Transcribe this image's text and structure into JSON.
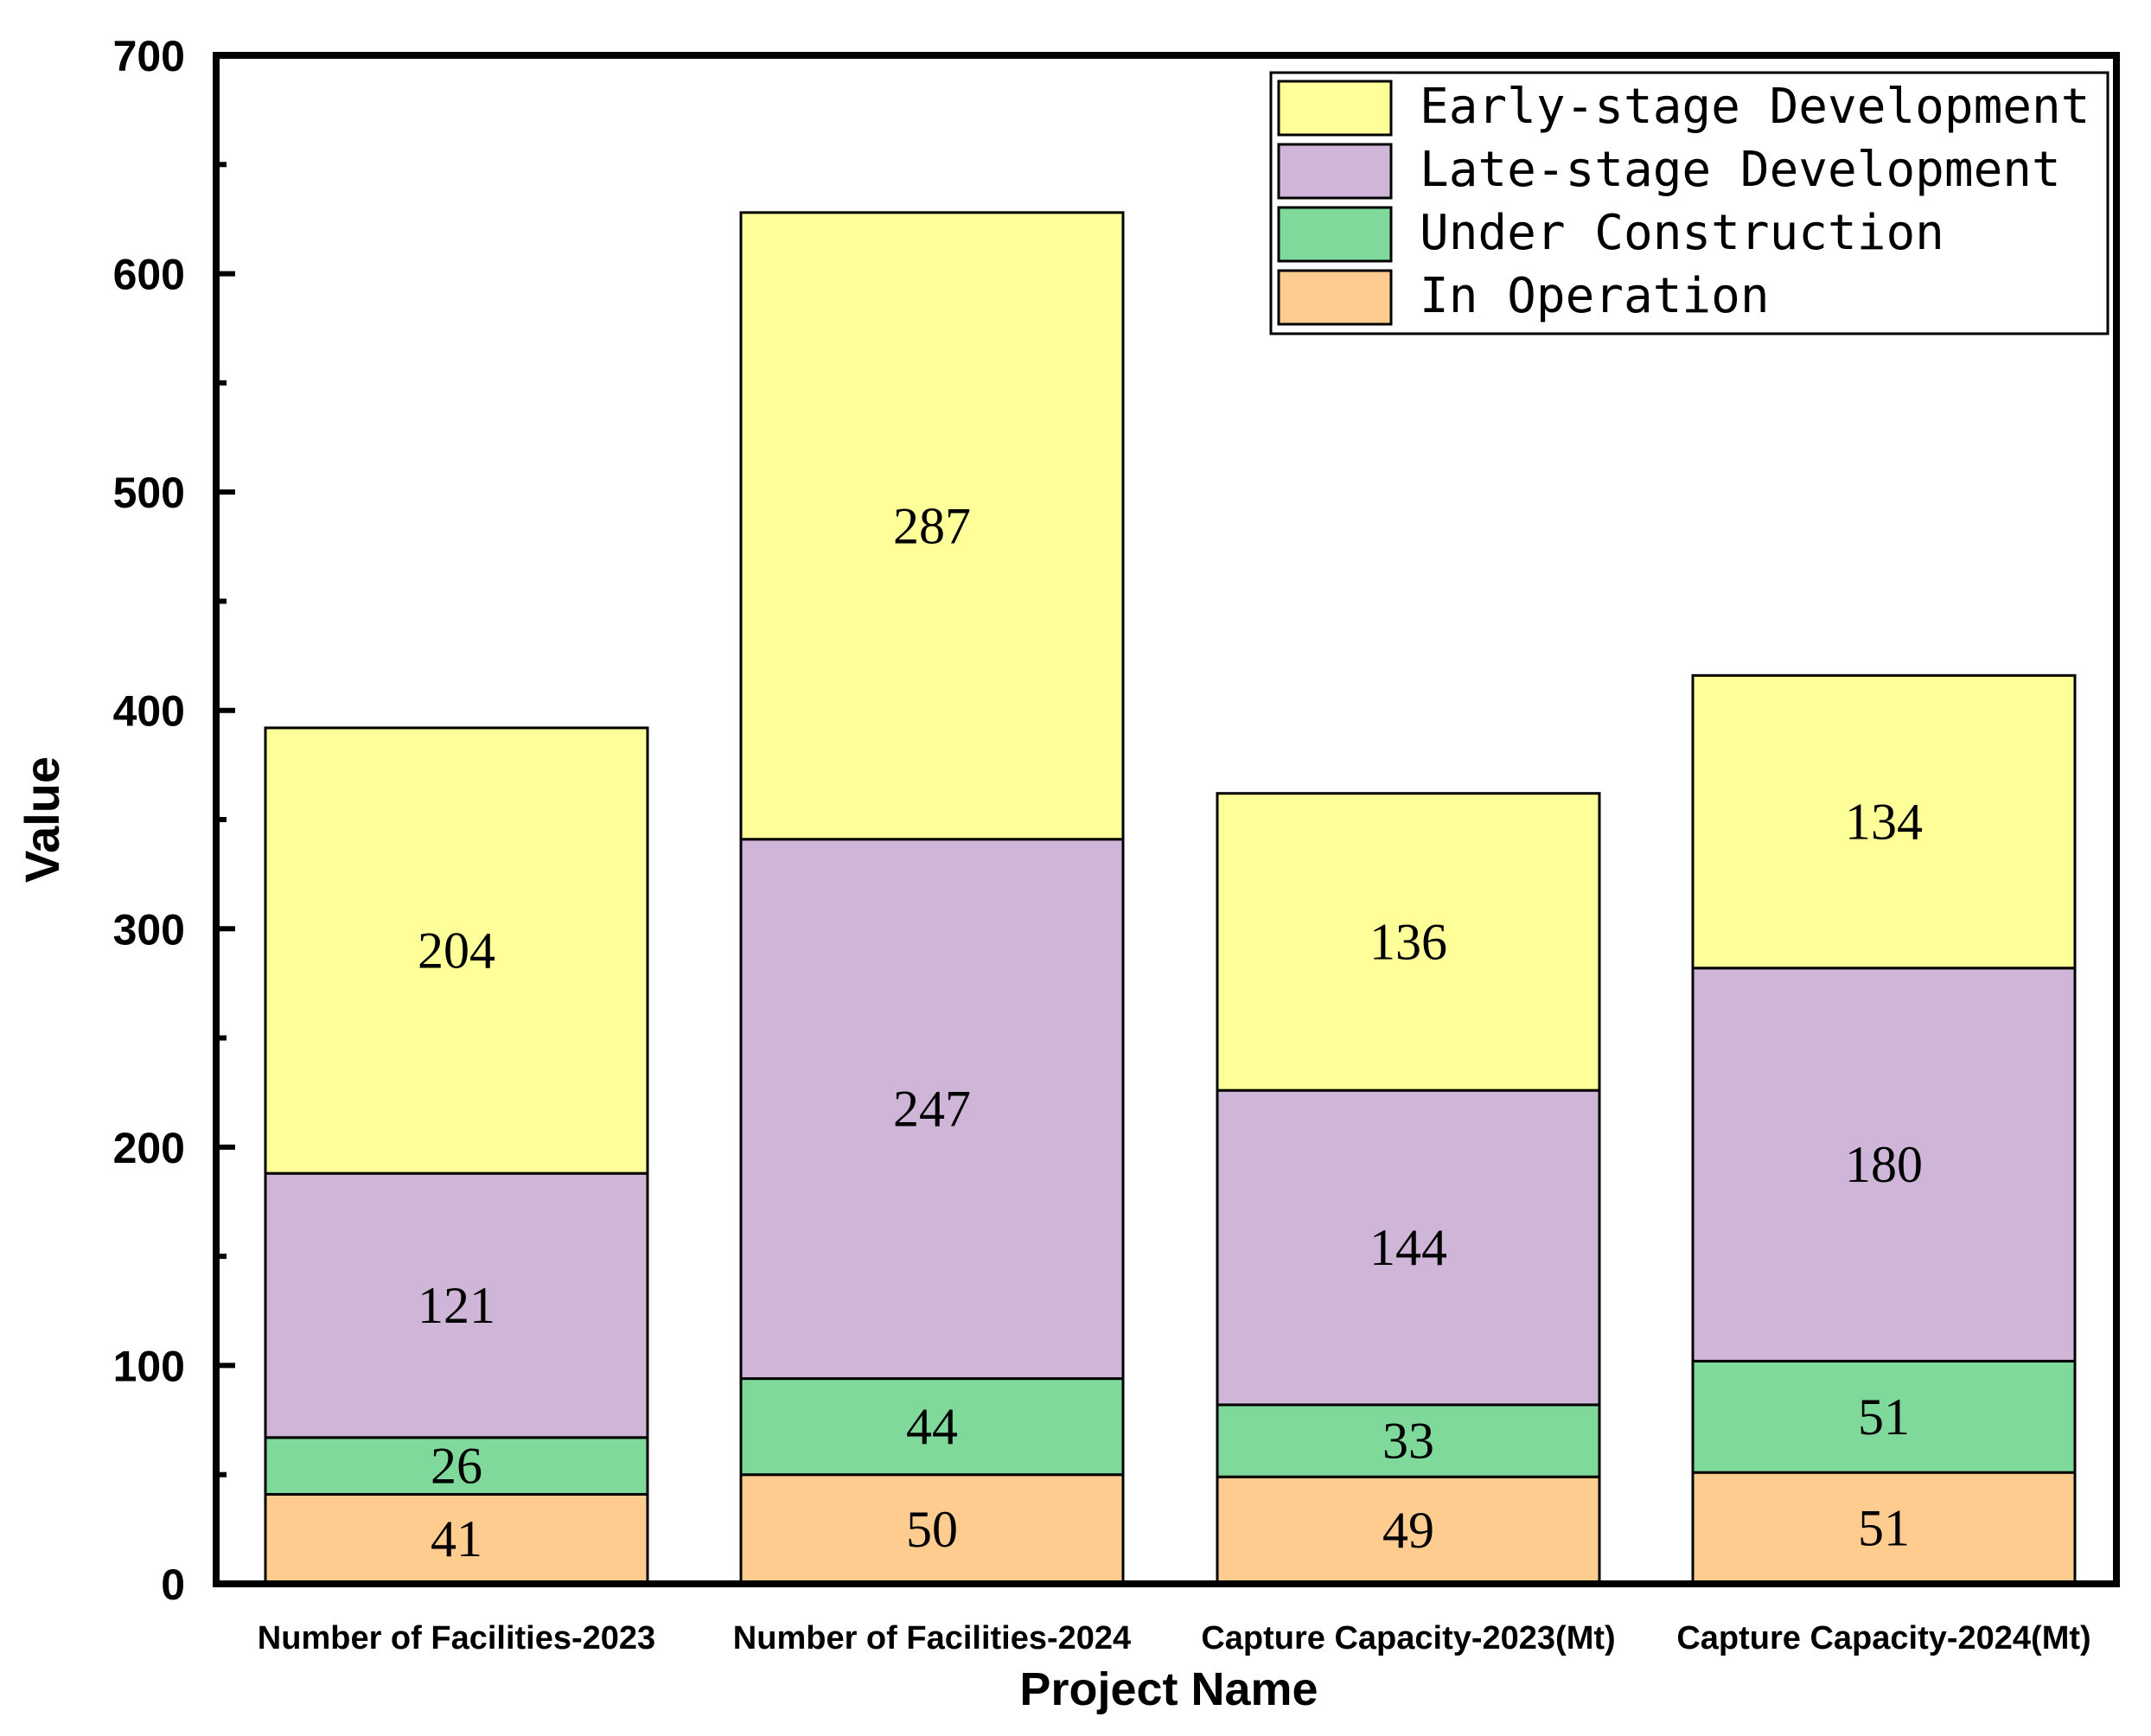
{
  "chart_data": {
    "type": "bar",
    "stacked": true,
    "xlabel": "Project Name",
    "ylabel": "Value",
    "ylim": [
      0,
      700
    ],
    "yticks": [
      0,
      100,
      200,
      300,
      400,
      500,
      600,
      700
    ],
    "categories": [
      "Number of Facilities-2023",
      "Number of Facilities-2024",
      "Capture Capacity-2023(Mt)",
      "Capture Capacity-2024(Mt)"
    ],
    "series": [
      {
        "name": "In Operation",
        "color": "#FFCC8F",
        "values": [
          41,
          50,
          49,
          51
        ]
      },
      {
        "name": "Under Construction",
        "color": "#7FD99A",
        "values": [
          26,
          44,
          33,
          51
        ]
      },
      {
        "name": "Late-stage Development",
        "color": "#CFB6D9",
        "values": [
          121,
          247,
          144,
          180
        ]
      },
      {
        "name": "Early-stage Development",
        "color": "#FFFF99",
        "values": [
          204,
          287,
          136,
          134
        ]
      }
    ],
    "legend": {
      "position": "top-right",
      "order": [
        "Early-stage Development",
        "Late-stage Development",
        "Under Construction",
        "In Operation"
      ]
    }
  }
}
